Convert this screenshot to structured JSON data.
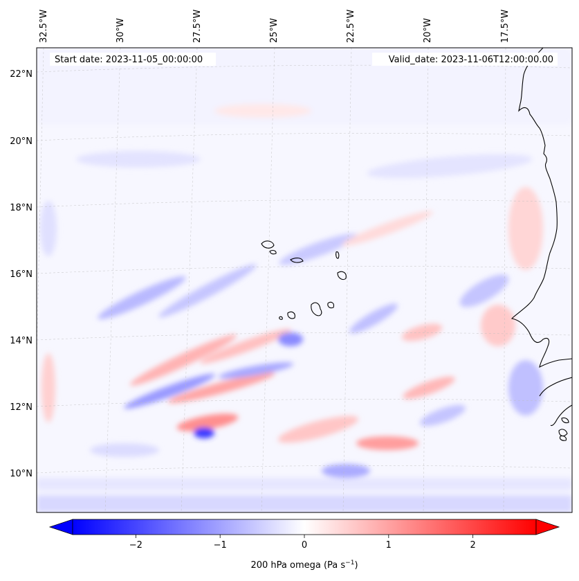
{
  "map": {
    "start_date_text": "Start date: 2023-11-05_00:00:00",
    "valid_date_text": "Valid_date: 2023-11-06T12:00:00.00",
    "lon_ticks": [
      "32.5°W",
      "30°W",
      "27.5°W",
      "25°W",
      "22.5°W",
      "20°W",
      "17.5°W"
    ],
    "lat_ticks": [
      "22°N",
      "20°N",
      "18°N",
      "16°N",
      "14°N",
      "12°N",
      "10°N"
    ],
    "extent": {
      "lon": [
        -33.0,
        -15.5
      ],
      "lat": [
        9.0,
        22.6
      ]
    },
    "projection": "lambert-conformal",
    "gridlines": true,
    "colormap": "bwr",
    "colors": {
      "negative": "#0000ff",
      "zero": "#ffffff",
      "positive": "#ff0000",
      "coastline": "#000000"
    }
  },
  "colorbar": {
    "label_main": "200 hPa omega (Pa s",
    "label_exp": "−1",
    "label_close": ")",
    "tick_labels": [
      "−2",
      "−1",
      "0",
      "1",
      "2"
    ],
    "range": [
      -2.75,
      2.75
    ],
    "ticks": [
      -2,
      -1,
      0,
      1,
      2
    ],
    "extend": "both"
  }
}
